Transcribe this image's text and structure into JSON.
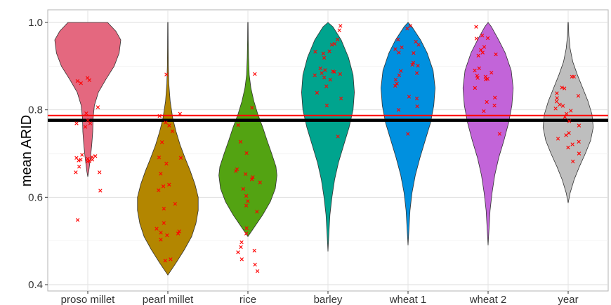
{
  "chart_data": {
    "type": "violin",
    "title": "",
    "xlabel": "",
    "ylabel": "mean ARID",
    "ylim": [
      0.4,
      1.0
    ],
    "y_ticks": [
      "0.4",
      "0.6",
      "0.8",
      "1.0"
    ],
    "grid": true,
    "reference_lines": [
      {
        "value": 0.787,
        "color": "#ff0000"
      },
      {
        "value": 0.776,
        "color": "#000000"
      }
    ],
    "point_color": "#ff0000",
    "categories": [
      {
        "label": "proso millet",
        "color": "#e4687f",
        "profile": [
          [
            0.647,
            0.0
          ],
          [
            0.66,
            0.03
          ],
          [
            0.69,
            0.08
          ],
          [
            0.72,
            0.12
          ],
          [
            0.75,
            0.15
          ],
          [
            0.78,
            0.16
          ],
          [
            0.81,
            0.2
          ],
          [
            0.84,
            0.32
          ],
          [
            0.87,
            0.55
          ],
          [
            0.9,
            0.8
          ],
          [
            0.93,
            0.95
          ],
          [
            0.96,
            1.0
          ],
          [
            0.98,
            0.85
          ],
          [
            1.0,
            0.6
          ]
        ],
        "points": [
          0.873,
          0.868,
          0.866,
          0.861,
          0.792,
          0.776,
          0.769,
          0.806,
          0.769,
          0.761,
          0.697,
          0.694,
          0.692,
          0.69,
          0.688,
          0.686,
          0.686,
          0.684,
          0.683,
          0.682,
          0.67,
          0.657,
          0.657,
          0.615,
          0.548
        ]
      },
      {
        "label": "pearl millet",
        "color": "#b38600",
        "profile": [
          [
            0.422,
            0.0
          ],
          [
            0.45,
            0.25
          ],
          [
            0.48,
            0.5
          ],
          [
            0.51,
            0.72
          ],
          [
            0.54,
            0.85
          ],
          [
            0.57,
            0.92
          ],
          [
            0.6,
            0.92
          ],
          [
            0.63,
            0.82
          ],
          [
            0.66,
            0.68
          ],
          [
            0.69,
            0.52
          ],
          [
            0.72,
            0.37
          ],
          [
            0.75,
            0.25
          ],
          [
            0.78,
            0.15
          ],
          [
            0.82,
            0.07
          ],
          [
            0.86,
            0.03
          ],
          [
            0.9,
            0.015
          ],
          [
            0.94,
            0.01
          ],
          [
            1.0,
            0.005
          ]
        ],
        "points": [
          0.881,
          0.791,
          0.786,
          0.771,
          0.764,
          0.751,
          0.726,
          0.691,
          0.69,
          0.677,
          0.654,
          0.629,
          0.625,
          0.616,
          0.585,
          0.574,
          0.541,
          0.528,
          0.522,
          0.519,
          0.517,
          0.513,
          0.503,
          0.458,
          0.455
        ]
      },
      {
        "label": "rice",
        "color": "#53a312",
        "profile": [
          [
            0.51,
            0.0
          ],
          [
            0.53,
            0.18
          ],
          [
            0.56,
            0.45
          ],
          [
            0.59,
            0.68
          ],
          [
            0.62,
            0.83
          ],
          [
            0.65,
            0.88
          ],
          [
            0.67,
            0.85
          ],
          [
            0.7,
            0.72
          ],
          [
            0.73,
            0.58
          ],
          [
            0.76,
            0.45
          ],
          [
            0.79,
            0.3
          ],
          [
            0.82,
            0.18
          ],
          [
            0.85,
            0.09
          ],
          [
            0.88,
            0.04
          ],
          [
            0.92,
            0.02
          ],
          [
            0.96,
            0.01
          ],
          [
            1.0,
            0.005
          ]
        ],
        "points": [
          0.882,
          0.805,
          0.765,
          0.727,
          0.701,
          0.664,
          0.66,
          0.653,
          0.646,
          0.641,
          0.634,
          0.619,
          0.603,
          0.591,
          0.581,
          0.567,
          0.529,
          0.517,
          0.497,
          0.486,
          0.478,
          0.474,
          0.458,
          0.446,
          0.431
        ]
      },
      {
        "label": "barley",
        "color": "#00a48e",
        "profile": [
          [
            0.476,
            0.0
          ],
          [
            0.52,
            0.03
          ],
          [
            0.56,
            0.06
          ],
          [
            0.6,
            0.12
          ],
          [
            0.64,
            0.2
          ],
          [
            0.68,
            0.32
          ],
          [
            0.72,
            0.48
          ],
          [
            0.76,
            0.64
          ],
          [
            0.8,
            0.76
          ],
          [
            0.84,
            0.8
          ],
          [
            0.88,
            0.76
          ],
          [
            0.92,
            0.62
          ],
          [
            0.96,
            0.4
          ],
          [
            0.99,
            0.15
          ],
          [
            1.0,
            0.0
          ]
        ],
        "points": [
          0.992,
          0.982,
          0.961,
          0.951,
          0.949,
          0.934,
          0.933,
          0.929,
          0.919,
          0.895,
          0.891,
          0.888,
          0.887,
          0.884,
          0.882,
          0.879,
          0.874,
          0.869,
          0.854,
          0.839,
          0.826,
          0.81,
          0.739
        ]
      },
      {
        "label": "wheat 1",
        "color": "#0090df",
        "profile": [
          [
            0.49,
            0.0
          ],
          [
            0.53,
            0.03
          ],
          [
            0.57,
            0.06
          ],
          [
            0.61,
            0.12
          ],
          [
            0.65,
            0.22
          ],
          [
            0.69,
            0.36
          ],
          [
            0.73,
            0.52
          ],
          [
            0.77,
            0.68
          ],
          [
            0.81,
            0.78
          ],
          [
            0.85,
            0.82
          ],
          [
            0.89,
            0.76
          ],
          [
            0.93,
            0.58
          ],
          [
            0.96,
            0.38
          ],
          [
            0.99,
            0.12
          ],
          [
            1.0,
            0.0
          ]
        ],
        "points": [
          0.992,
          0.986,
          0.961,
          0.956,
          0.949,
          0.943,
          0.939,
          0.931,
          0.93,
          0.908,
          0.903,
          0.901,
          0.889,
          0.884,
          0.879,
          0.869,
          0.86,
          0.855,
          0.83,
          0.826,
          0.808,
          0.8,
          0.745
        ]
      },
      {
        "label": "wheat 2",
        "color": "#c264d9",
        "profile": [
          [
            0.49,
            0.0
          ],
          [
            0.53,
            0.03
          ],
          [
            0.57,
            0.06
          ],
          [
            0.61,
            0.12
          ],
          [
            0.65,
            0.2
          ],
          [
            0.69,
            0.32
          ],
          [
            0.73,
            0.48
          ],
          [
            0.77,
            0.62
          ],
          [
            0.81,
            0.72
          ],
          [
            0.85,
            0.76
          ],
          [
            0.89,
            0.7
          ],
          [
            0.93,
            0.52
          ],
          [
            0.96,
            0.32
          ],
          [
            0.99,
            0.1
          ],
          [
            1.0,
            0.0
          ]
        ],
        "points": [
          0.99,
          0.97,
          0.964,
          0.963,
          0.944,
          0.937,
          0.931,
          0.927,
          0.924,
          0.895,
          0.89,
          0.885,
          0.878,
          0.876,
          0.873,
          0.871,
          0.87,
          0.85,
          0.828,
          0.818,
          0.81,
          0.797,
          0.745
        ]
      },
      {
        "label": "year",
        "color": "#bebebe",
        "profile": [
          [
            0.587,
            0.0
          ],
          [
            0.61,
            0.06
          ],
          [
            0.64,
            0.18
          ],
          [
            0.67,
            0.34
          ],
          [
            0.7,
            0.52
          ],
          [
            0.73,
            0.68
          ],
          [
            0.76,
            0.76
          ],
          [
            0.79,
            0.72
          ],
          [
            0.82,
            0.6
          ],
          [
            0.85,
            0.44
          ],
          [
            0.88,
            0.28
          ],
          [
            0.91,
            0.14
          ],
          [
            0.94,
            0.06
          ],
          [
            0.97,
            0.02
          ],
          [
            1.0,
            0.005
          ]
        ],
        "points": [
          0.876,
          0.876,
          0.851,
          0.849,
          0.838,
          0.832,
          0.827,
          0.819,
          0.812,
          0.809,
          0.803,
          0.798,
          0.791,
          0.784,
          0.774,
          0.764,
          0.747,
          0.742,
          0.734,
          0.727,
          0.721,
          0.714,
          0.7,
          0.682
        ]
      }
    ]
  }
}
